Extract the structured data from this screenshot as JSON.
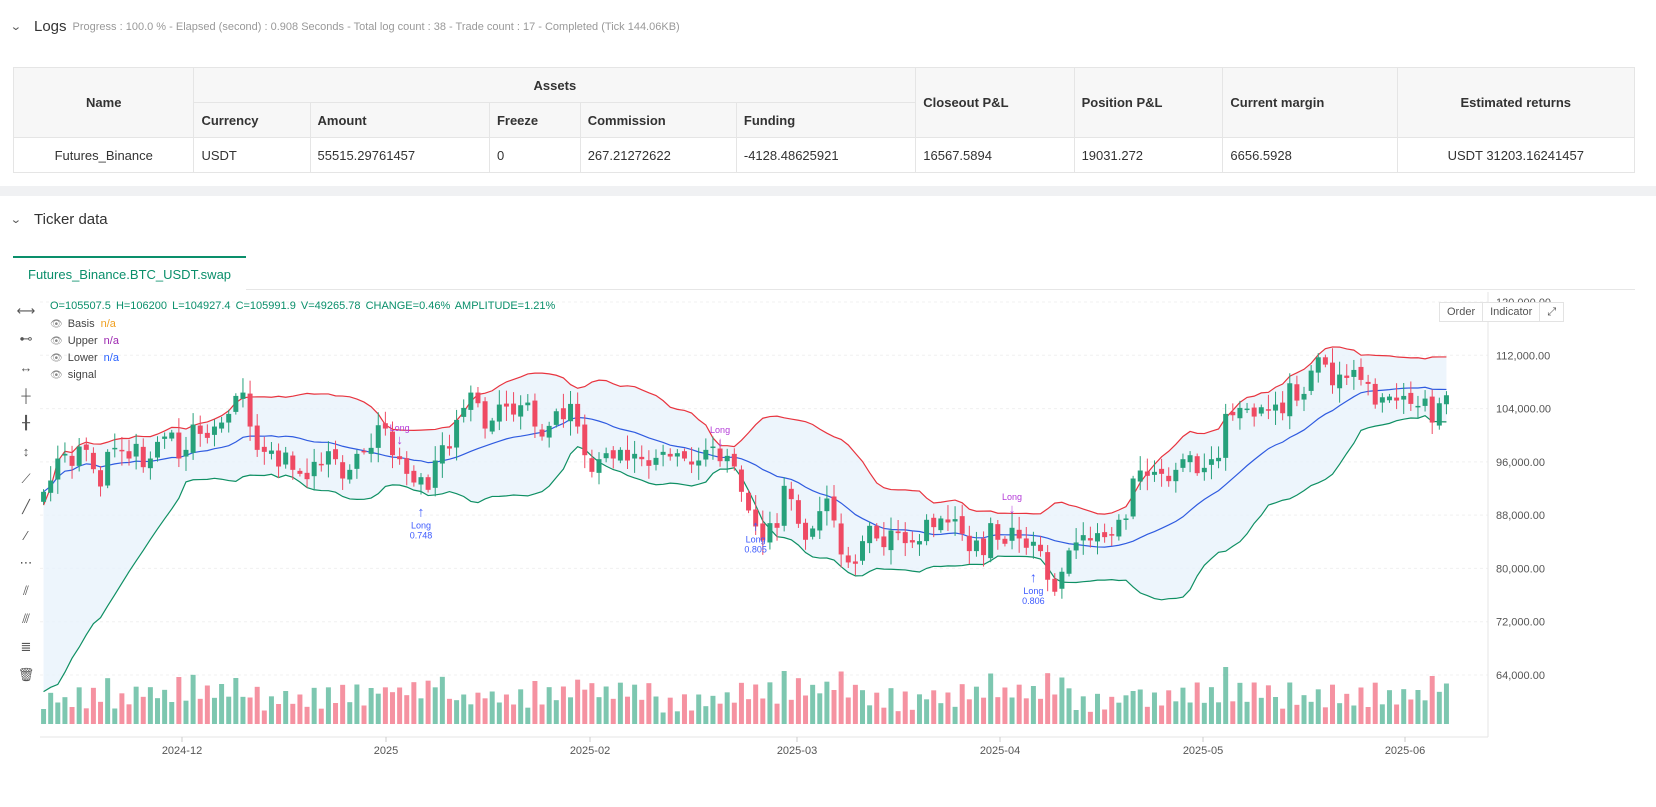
{
  "logs": {
    "title": "Logs",
    "info": "Progress : 100.0 % - Elapsed (second) : 0.908  Seconds - Total log count : 38 - Trade count : 17 - Completed (Tick 144.06KB)",
    "table": {
      "headers": {
        "name": "Name",
        "assets": "Assets",
        "currency": "Currency",
        "amount": "Amount",
        "freeze": "Freeze",
        "commission": "Commission",
        "funding": "Funding",
        "closeout": "Closeout P&L",
        "position": "Position P&L",
        "margin": "Current margin",
        "returns": "Estimated returns"
      },
      "row": {
        "name": "Futures_Binance",
        "currency": "USDT",
        "amount": "55515.29761457",
        "freeze": "0",
        "commission": "267.21272622",
        "funding": "-4128.48625921",
        "closeout": "16567.5894",
        "position": "19031.272",
        "margin": "6656.5928",
        "returns": "USDT 31203.16241457"
      }
    }
  },
  "ticker": {
    "title": "Ticker data",
    "tab": "Futures_Binance.BTC_USDT.swap",
    "ohlc": {
      "o": "O=105507.5",
      "h": "H=106200",
      "l": "L=104927.4",
      "c": "C=105991.9",
      "v": "V=49265.78",
      "change": "CHANGE=0.46%",
      "amplitude": "AMPLITUDE=1.21%"
    },
    "legend": [
      {
        "name": "Basis",
        "value": "n/a",
        "color": "#f0a020"
      },
      {
        "name": "Upper",
        "value": "n/a",
        "color": "#9c27b0"
      },
      {
        "name": "Lower",
        "value": "n/a",
        "color": "#2962ff"
      },
      {
        "name": "signal",
        "value": "",
        "color": "#444444"
      }
    ],
    "buttons": {
      "order": "Order",
      "indicator": "Indicator",
      "expand": "⤢"
    }
  },
  "chart_data": {
    "type": "candlestick",
    "symbol": "Futures_Binance.BTC_USDT.swap",
    "y_ticks": [
      "120,000.00",
      "112,000.00",
      "104,000.00",
      "96,000.00",
      "88,000.00",
      "80,000.00",
      "72,000.00",
      "64,000.00"
    ],
    "ylim": [
      54000,
      120000
    ],
    "x_ticks": [
      "2024-12",
      "2025",
      "2025-02",
      "2025-03",
      "2025-04",
      "2025-05",
      "2025-06"
    ],
    "colors": {
      "up": "#26a17b",
      "down": "#ef4a63",
      "upper": "#e8343f",
      "basis": "#2f5be0",
      "lower": "#0e8f63",
      "band_fill": "#e8f2fb",
      "signal": "#b43ad8",
      "long": "#3d5afe"
    },
    "series_close": [
      91500,
      93200,
      96500,
      97200,
      95400,
      98300,
      97800,
      94900,
      92300,
      97500,
      98100,
      97600,
      96500,
      98700,
      95200,
      96500,
      99000,
      99800,
      100400,
      96500,
      97800,
      101600,
      100200,
      99600,
      101300,
      101900,
      103200,
      105900,
      106400,
      101300,
      97800,
      97500,
      97700,
      95300,
      97400,
      94800,
      94200,
      93400,
      96000,
      95600,
      97600,
      96400,
      93500,
      94800,
      97200,
      97500,
      98100,
      101500,
      101000,
      97000,
      96400,
      94200,
      92900,
      93700,
      91800,
      96200,
      98500,
      98000,
      102300,
      104100,
      106400,
      104800,
      101000,
      102200,
      104600,
      104300,
      103100,
      104500,
      104900,
      101300,
      99800,
      101400,
      103600,
      102400,
      104700,
      101300,
      97000,
      94500,
      96400,
      97300,
      96500,
      97800,
      96200,
      97200,
      96400,
      95400,
      96600,
      97500,
      96800,
      97300,
      96500,
      95600,
      96200,
      97800,
      98300,
      96100,
      96900,
      95300,
      91500,
      88700,
      86300,
      84200,
      86800,
      86100,
      92400,
      90400,
      86700,
      84300,
      86000,
      88600,
      90500,
      87200,
      82100,
      80900,
      80700,
      84100,
      86400,
      84500,
      83200,
      85700,
      85300,
      83800,
      83900,
      84100,
      87300,
      86200,
      87500,
      86900,
      87400,
      85200,
      82600,
      84200,
      82000,
      86800,
      84300,
      83700,
      86100,
      84500,
      83100,
      84000,
      82600,
      78300,
      76500,
      79500,
      82700,
      83900,
      85000,
      84200,
      85300,
      84700,
      85100,
      87300,
      87500,
      93500,
      94700,
      93900,
      94500,
      94200,
      93100,
      94800,
      96400,
      97000,
      94300,
      95100,
      96400,
      96600,
      103200,
      103000,
      104100,
      104000,
      102800,
      104200,
      103700,
      104600,
      103300,
      107800,
      105200,
      106200,
      109700,
      111700,
      110600,
      107500,
      109100,
      108600,
      109800,
      108300,
      107700,
      104600,
      105700,
      105800,
      105200,
      105900,
      104700,
      104400,
      105500,
      101900,
      104800,
      106000
    ],
    "volume_note": "volume histogram beneath price, colored by candle direction",
    "signals": [
      {
        "label": "Long",
        "value": "0.748",
        "type": "long"
      },
      {
        "label": "Long",
        "value": "0.805",
        "type": "long"
      },
      {
        "label": "Long",
        "value": "0.806",
        "type": "long"
      },
      {
        "label": "Long",
        "value": "",
        "type": "signal"
      },
      {
        "label": "Long",
        "value": "",
        "type": "signal"
      },
      {
        "label": "Long",
        "value": "",
        "type": "signal"
      }
    ]
  }
}
